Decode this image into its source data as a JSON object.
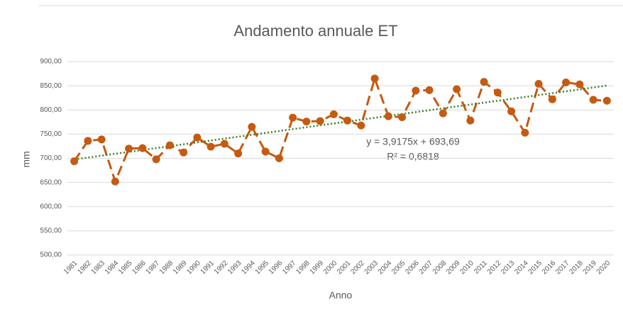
{
  "chart_data": {
    "type": "line",
    "title": "Andamento annuale ET",
    "ylabel": "mm",
    "xlabel": "Anno",
    "categories": [
      "1981",
      "1982",
      "1983",
      "1984",
      "1985",
      "1986",
      "1987",
      "1988",
      "1989",
      "1990",
      "1991",
      "1992",
      "1993",
      "1994",
      "1995",
      "1996",
      "1997",
      "1998",
      "1999",
      "2000",
      "2001",
      "2002",
      "2003",
      "2004",
      "2005",
      "2006",
      "2007",
      "2008",
      "2009",
      "2010",
      "2011",
      "2012",
      "2013",
      "2014",
      "2015",
      "2016",
      "2017",
      "2018",
      "2019",
      "2020"
    ],
    "series": [
      {
        "name": "ET",
        "color": "#c55a11",
        "values": [
          694,
          736,
          739,
          652,
          720,
          721,
          698,
          727,
          712,
          743,
          724,
          730,
          710,
          765,
          714,
          700,
          784,
          776,
          777,
          791,
          778,
          768,
          865,
          787,
          785,
          840,
          841,
          793,
          843,
          778,
          858,
          836,
          797,
          753,
          854,
          822,
          857,
          853,
          821,
          819
        ]
      }
    ],
    "trendline": {
      "slope": 3.9175,
      "intercept": 693.69,
      "color": "#3a7d22",
      "equation": "y = 3,9175x + 693,69",
      "r2": "R² = 0,6818"
    },
    "ylim": [
      500,
      900
    ],
    "yticks": [
      {
        "value": 500,
        "label": "500,00"
      },
      {
        "value": 550,
        "label": "550,00"
      },
      {
        "value": 600,
        "label": "600,00"
      },
      {
        "value": 650,
        "label": "650,00"
      },
      {
        "value": 700,
        "label": "700,00"
      },
      {
        "value": 750,
        "label": "750,00"
      },
      {
        "value": 800,
        "label": "800,00"
      },
      {
        "value": 850,
        "label": "850,00"
      },
      {
        "value": 900,
        "label": "900,00"
      }
    ],
    "grid": true
  }
}
